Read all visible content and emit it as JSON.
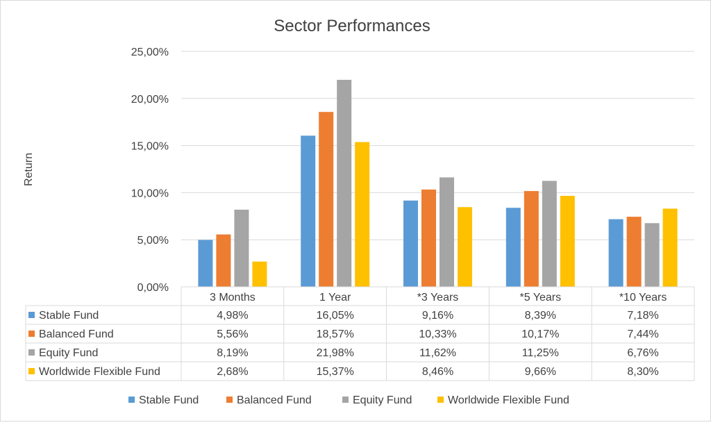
{
  "chart_data": {
    "type": "bar",
    "title": "Sector Performances",
    "xlabel": "",
    "ylabel": "Return",
    "ylim": [
      0,
      25
    ],
    "y_ticks": [
      "0,00%",
      "5,00%",
      "10,00%",
      "15,00%",
      "20,00%",
      "25,00%"
    ],
    "categories": [
      "3 Months",
      "1 Year",
      "*3 Years",
      "*5 Years",
      "*10 Years"
    ],
    "series": [
      {
        "name": "Stable Fund",
        "color": "#5B9BD5",
        "values": [
          4.98,
          16.05,
          9.16,
          8.39,
          7.18
        ],
        "labels": [
          "4,98%",
          "16,05%",
          "9,16%",
          "8,39%",
          "7,18%"
        ]
      },
      {
        "name": "Balanced Fund",
        "color": "#ED7D31",
        "values": [
          5.56,
          18.57,
          10.33,
          10.17,
          7.44
        ],
        "labels": [
          "5,56%",
          "18,57%",
          "10,33%",
          "10,17%",
          "7,44%"
        ]
      },
      {
        "name": "Equity Fund",
        "color": "#A5A5A5",
        "values": [
          8.19,
          21.98,
          11.62,
          11.25,
          6.76
        ],
        "labels": [
          "8,19%",
          "21,98%",
          "11,62%",
          "11,25%",
          "6,76%"
        ]
      },
      {
        "name": "Worldwide Flexible Fund",
        "color": "#FFC000",
        "values": [
          2.68,
          15.37,
          8.46,
          9.66,
          8.3
        ],
        "labels": [
          "2,68%",
          "15,37%",
          "8,46%",
          "9,66%",
          "8,30%"
        ]
      }
    ],
    "grid": true,
    "data_table": true,
    "legend_position": "bottom"
  }
}
